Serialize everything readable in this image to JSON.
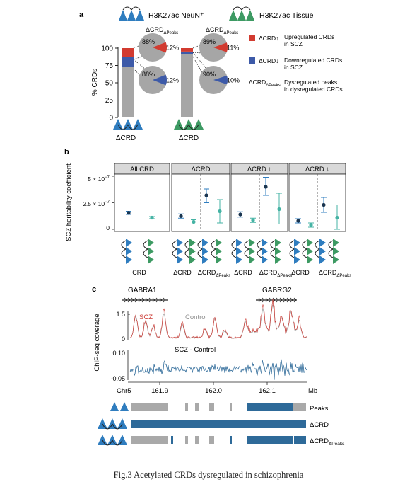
{
  "caption": "Fig.3 Acetylated CRDs dysregulated in schizophrenia",
  "colors": {
    "neun_blue": "#2f7dbf",
    "tissue_green": "#3d9a63",
    "up_red": "#d23b30",
    "down_blue": "#3d5aa8",
    "bar_gray": "#a6a6a6",
    "dark_point": "#1a3550",
    "teal_point": "#45b3a4",
    "track_blue": "#2e6a99",
    "scz_red": "#cc3b35",
    "control_gray": "#9a9a9a"
  },
  "panel_a": {
    "label": "a",
    "legend_neun": "H3K27ac NeuN⁺",
    "legend_tissue": "H3K27ac Tissue",
    "pie_header_left": "ΔCRD",
    "pie_header_left_sub": "ΔPeaks",
    "pie_header_right": "ΔCRD",
    "pie_header_right_sub": "ΔPeaks",
    "ylabel": "% CRDs",
    "yticks": [
      "0",
      "25",
      "50",
      "75",
      "100"
    ],
    "xlabel_left": "ΔCRD",
    "xlabel_right": "ΔCRD",
    "legend_up_key": "ΔCRD",
    "legend_up_arrow": "↑",
    "legend_up_text_1": "Upregulated CRDs",
    "legend_up_text_2": "in SCZ",
    "legend_down_key": "ΔCRD",
    "legend_down_arrow": "↓",
    "legend_down_text_1": "Downregulated CRDs",
    "legend_down_text_2": "in SCZ",
    "legend_peaks_key": "ΔCRD",
    "legend_peaks_key_sub": "ΔPeaks",
    "legend_peaks_text_1": "Dysregulated peaks",
    "legend_peaks_text_2": "in dysregulated CRDs"
  },
  "panel_b": {
    "label": "b",
    "ylabel": "SCZ heritability coefficient",
    "ytick_top_base": "5 × 10",
    "ytick_top_exp": "−7",
    "ytick_mid_base": "2.5 × 10",
    "ytick_mid_exp": "−7",
    "ytick_zero": "0",
    "facets": [
      "All CRD",
      "ΔCRD",
      "ΔCRD",
      "ΔCRD"
    ],
    "facet_arrows": [
      "",
      "",
      "↑",
      "↓"
    ],
    "xlabels": [
      {
        "main": "CRD",
        "sub": ""
      },
      {
        "main": "ΔCRD",
        "sub": ""
      },
      {
        "main": "ΔCRD",
        "sub": "ΔPeaks"
      },
      {
        "main": "ΔCRD",
        "sub": ""
      },
      {
        "main": "ΔCRD",
        "sub": "ΔPeaks"
      },
      {
        "main": "ΔCRD",
        "sub": ""
      },
      {
        "main": "ΔCRD",
        "sub": "ΔPeaks"
      }
    ]
  },
  "panel_c": {
    "label": "c",
    "gene_left": "GABRA1",
    "gene_right": "GABRG2",
    "ylabel": "ChIP-seq coverage",
    "top_yticks": [
      "1.5",
      "0"
    ],
    "bottom_yticks": [
      "0.10",
      "-0.05"
    ],
    "legend_scz": "SCZ",
    "legend_control": "Control",
    "diff_label": "SCZ - Control",
    "chrom": "Chr5",
    "xticks": [
      "161.9",
      "162.0",
      "162.1"
    ],
    "unit": "Mb",
    "track_peaks": "Peaks",
    "track_dcrd": "ΔCRD",
    "track_dcrd_peaks": "ΔCRD",
    "track_dcrd_peaks_sub": "ΔPeaks"
  },
  "chart_data": [
    {
      "panel": "a",
      "type": "bar",
      "ylabel": "% CRDs",
      "ylim": [
        0,
        100
      ],
      "categories": [
        "ΔCRD",
        "ΔCRD"
      ],
      "series": [
        {
          "name": "Upregulated CRDs in SCZ",
          "values": [
            13,
            5
          ]
        },
        {
          "name": "Downregulated CRDs in SCZ",
          "values": [
            14,
            4
          ]
        }
      ]
    },
    {
      "panel": "a",
      "type": "pie",
      "slices": [
        {
          "labels": [
            "88%",
            "12%"
          ],
          "values": [
            88,
            12
          ]
        },
        {
          "labels": [
            "88%",
            "12%"
          ],
          "values": [
            88,
            12
          ]
        },
        {
          "labels": [
            "89%",
            "11%"
          ],
          "values": [
            89,
            11
          ]
        },
        {
          "labels": [
            "90%",
            "10%"
          ],
          "values": [
            90,
            10
          ]
        }
      ]
    },
    {
      "panel": "b",
      "type": "scatter",
      "ylabel": "SCZ heritability coefficient",
      "ylim": [
        -2e-08,
        5.2e-07
      ],
      "points": [
        {
          "facet": 0,
          "y": 1.55e-07,
          "lo": 1.4e-07,
          "hi": 1.7e-07,
          "dark": true
        },
        {
          "facet": 0,
          "y": 1.1e-07,
          "lo": 1e-07,
          "hi": 1.2e-07,
          "dark": false
        },
        {
          "facet": 1,
          "y": 1.25e-07,
          "lo": 1.05e-07,
          "hi": 1.45e-07,
          "dark": true
        },
        {
          "facet": 1,
          "y": 7e-08,
          "lo": 5e-08,
          "hi": 9e-08,
          "dark": false
        },
        {
          "facet": 1,
          "y": 3.2e-07,
          "lo": 2.5e-07,
          "hi": 3.8e-07,
          "dark": true
        },
        {
          "facet": 1,
          "y": 1.7e-07,
          "lo": 6e-08,
          "hi": 2.8e-07,
          "dark": false
        },
        {
          "facet": 2,
          "y": 1.4e-07,
          "lo": 1.15e-07,
          "hi": 1.65e-07,
          "dark": true
        },
        {
          "facet": 2,
          "y": 8.5e-08,
          "lo": 6.5e-08,
          "hi": 1.05e-07,
          "dark": false
        },
        {
          "facet": 2,
          "y": 4e-07,
          "lo": 3.2e-07,
          "hi": 4.9e-07,
          "dark": true
        },
        {
          "facet": 2,
          "y": 1.9e-07,
          "lo": 5e-08,
          "hi": 3.4e-07,
          "dark": false
        },
        {
          "facet": 3,
          "y": 8e-08,
          "lo": 6e-08,
          "hi": 1e-07,
          "dark": true
        },
        {
          "facet": 3,
          "y": 4e-08,
          "lo": 2e-08,
          "hi": 6e-08,
          "dark": false
        },
        {
          "facet": 3,
          "y": 2.3e-07,
          "lo": 1.6e-07,
          "hi": 3e-07,
          "dark": true
        },
        {
          "facet": 3,
          "y": 1.1e-07,
          "lo": 0.0,
          "hi": 2.3e-07,
          "dark": false
        }
      ]
    }
  ]
}
